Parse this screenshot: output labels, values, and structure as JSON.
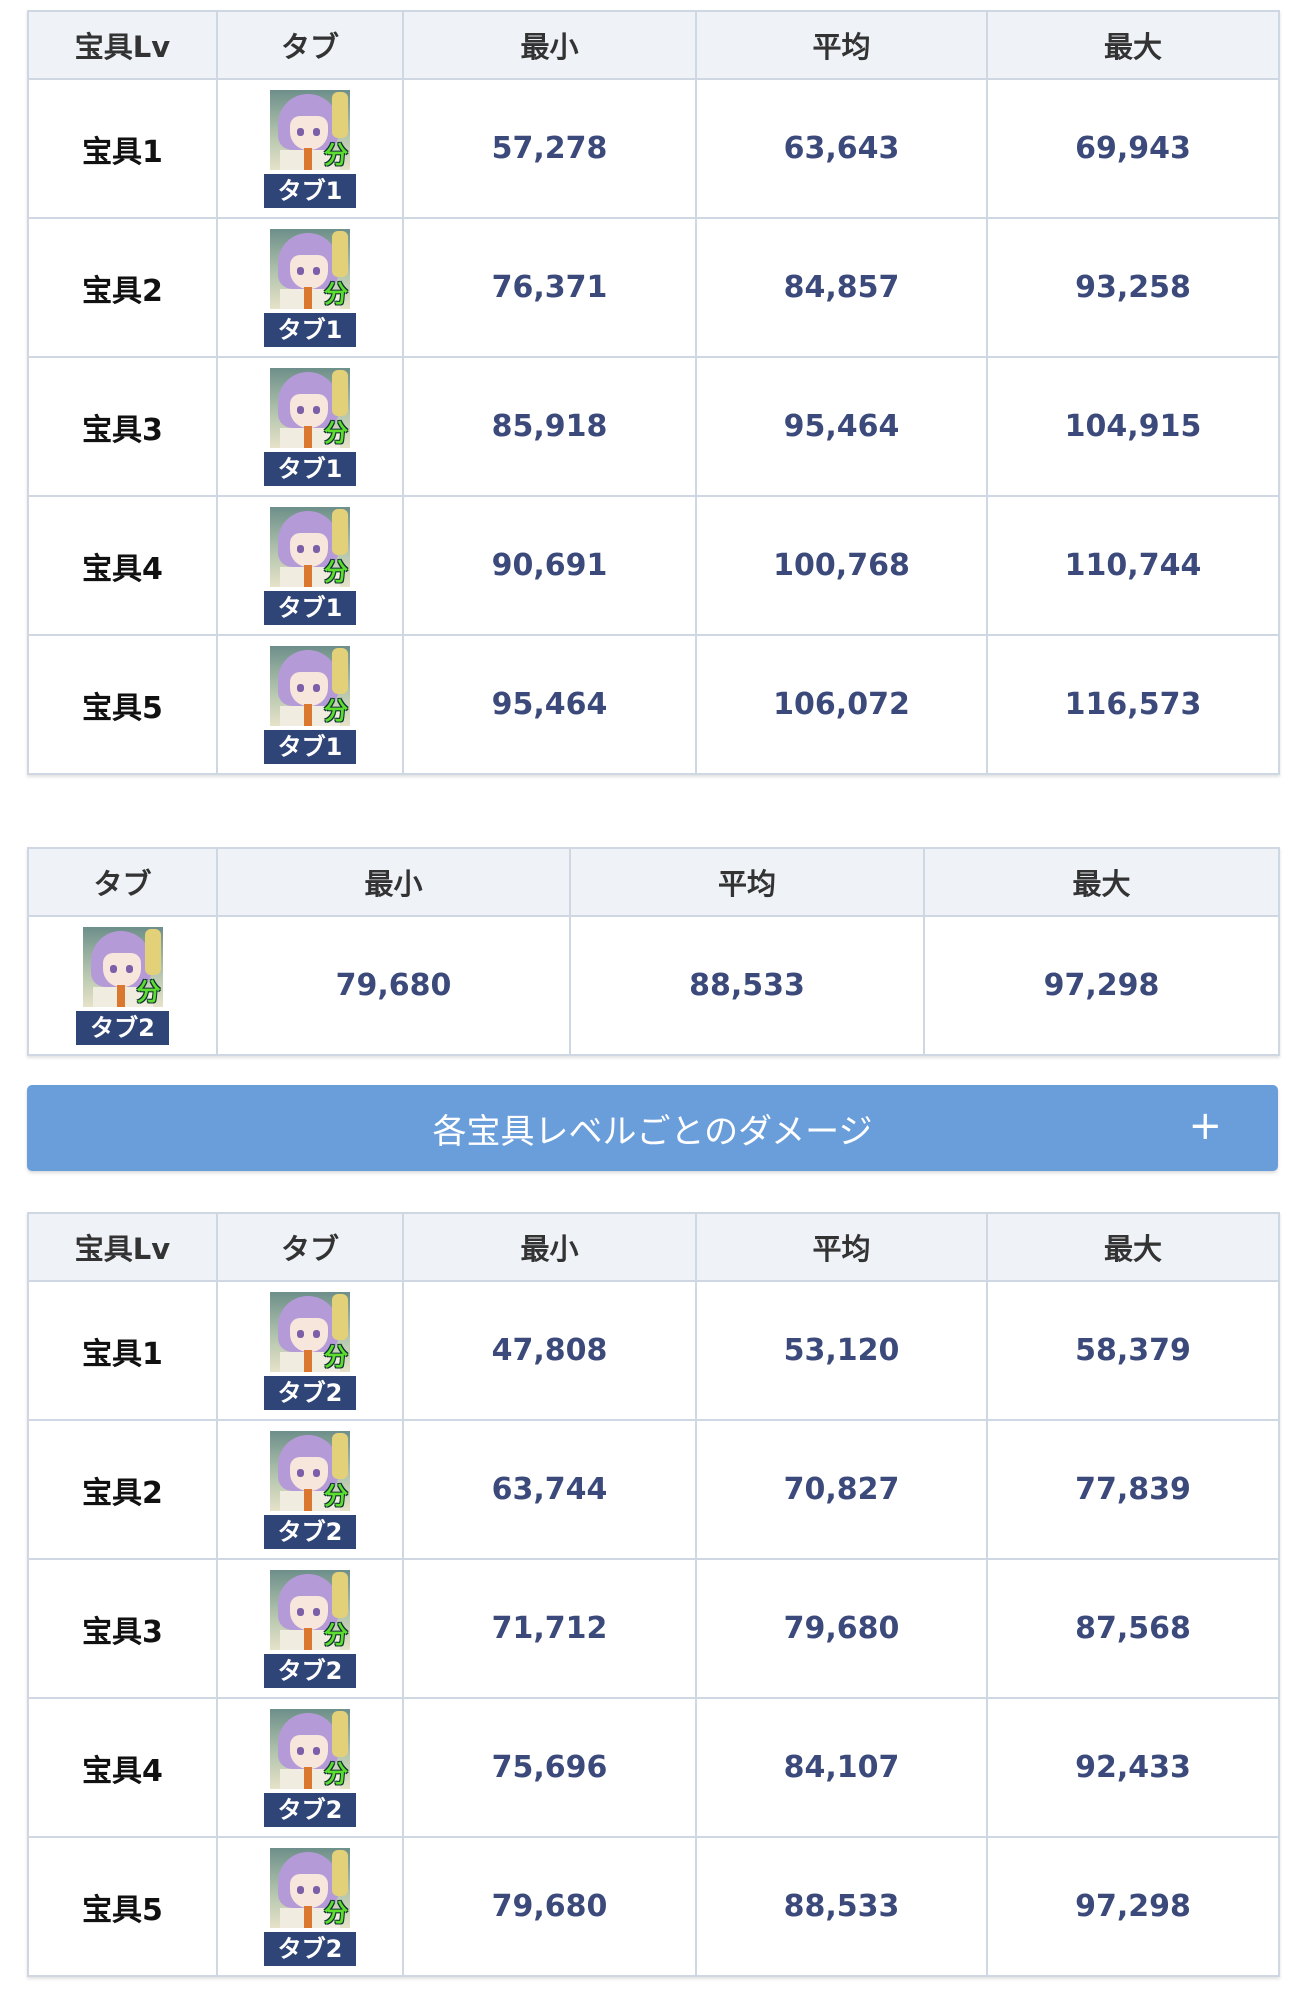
{
  "table_lv_tab1": {
    "headers": [
      "宝具Lv",
      "タブ",
      "最小",
      "平均",
      "最大"
    ],
    "rows": [
      {
        "lv": "宝具1",
        "tab": "タブ1",
        "min": "57,278",
        "avg": "63,643",
        "max": "69,943"
      },
      {
        "lv": "宝具2",
        "tab": "タブ1",
        "min": "76,371",
        "avg": "84,857",
        "max": "93,258"
      },
      {
        "lv": "宝具3",
        "tab": "タブ1",
        "min": "85,918",
        "avg": "95,464",
        "max": "104,915"
      },
      {
        "lv": "宝具4",
        "tab": "タブ1",
        "min": "90,691",
        "avg": "100,768",
        "max": "110,744"
      },
      {
        "lv": "宝具5",
        "tab": "タブ1",
        "min": "95,464",
        "avg": "106,072",
        "max": "116,573"
      }
    ]
  },
  "table_tab2": {
    "headers": [
      "タブ",
      "最小",
      "平均",
      "最大"
    ],
    "rows": [
      {
        "tab": "タブ2",
        "min": "79,680",
        "avg": "88,533",
        "max": "97,298"
      }
    ]
  },
  "toggle": {
    "label": "各宝具レベルごとのダメージ",
    "icon": "plus-icon",
    "icon_text": "+"
  },
  "table_lv_tab2": {
    "headers": [
      "宝具Lv",
      "タブ",
      "最小",
      "平均",
      "最大"
    ],
    "rows": [
      {
        "lv": "宝具1",
        "tab": "タブ2",
        "min": "47,808",
        "avg": "53,120",
        "max": "58,379"
      },
      {
        "lv": "宝具2",
        "tab": "タブ2",
        "min": "63,744",
        "avg": "70,827",
        "max": "77,839"
      },
      {
        "lv": "宝具3",
        "tab": "タブ2",
        "min": "71,712",
        "avg": "79,680",
        "max": "87,568"
      },
      {
        "lv": "宝具4",
        "tab": "タブ2",
        "min": "75,696",
        "avg": "84,107",
        "max": "92,433"
      },
      {
        "lv": "宝具5",
        "tab": "タブ2",
        "min": "79,680",
        "avg": "88,533",
        "max": "97,298"
      }
    ]
  },
  "portrait_badge": "分",
  "colors": {
    "header_bg": "#eff3f8",
    "number": "#3b4a7a",
    "tab_label_bg": "#2f4477",
    "toggle_bg": "#6a9edb"
  }
}
